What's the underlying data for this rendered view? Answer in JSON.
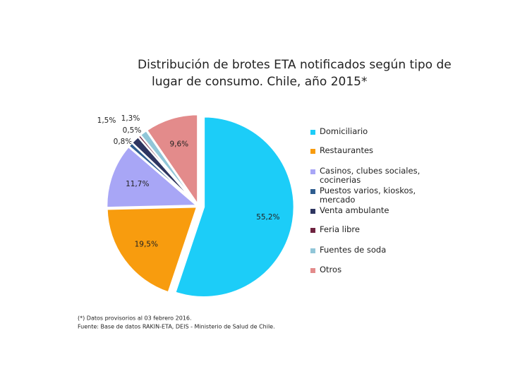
{
  "chart_data": {
    "type": "pie",
    "title": [
      "Distribución de brotes ETA notificados según tipo de",
      "lugar de consumo.  Chile, año 2015*"
    ],
    "categories": [
      "Domiciliario",
      "Restaurantes",
      "Casinos, clubes sociales, cocinerias",
      "Puestos varios, kioskos, mercado",
      "Venta ambulante",
      "Feria libre",
      "Fuentes de soda",
      "Otros"
    ],
    "values": [
      55.2,
      19.5,
      11.7,
      0.8,
      1.5,
      0.5,
      1.3,
      9.6
    ],
    "value_labels": [
      "55,2%",
      "19,5%",
      "11,7%",
      "0,8%",
      "1,5%",
      "0,5%",
      "1,3%",
      "9,6%"
    ],
    "colors": [
      "#1ccdf8",
      "#f89c0e",
      "#a8a6f6",
      "#2f5d8f",
      "#2e3560",
      "#6e2340",
      "#91c6d8",
      "#e38b8b"
    ],
    "notes": [
      "(*) Datos provisorios al 03 febrero 2016.",
      "Fuente: Base de datos RAKIN-ETA, DEIS - Ministerio de Salud de Chile."
    ]
  }
}
